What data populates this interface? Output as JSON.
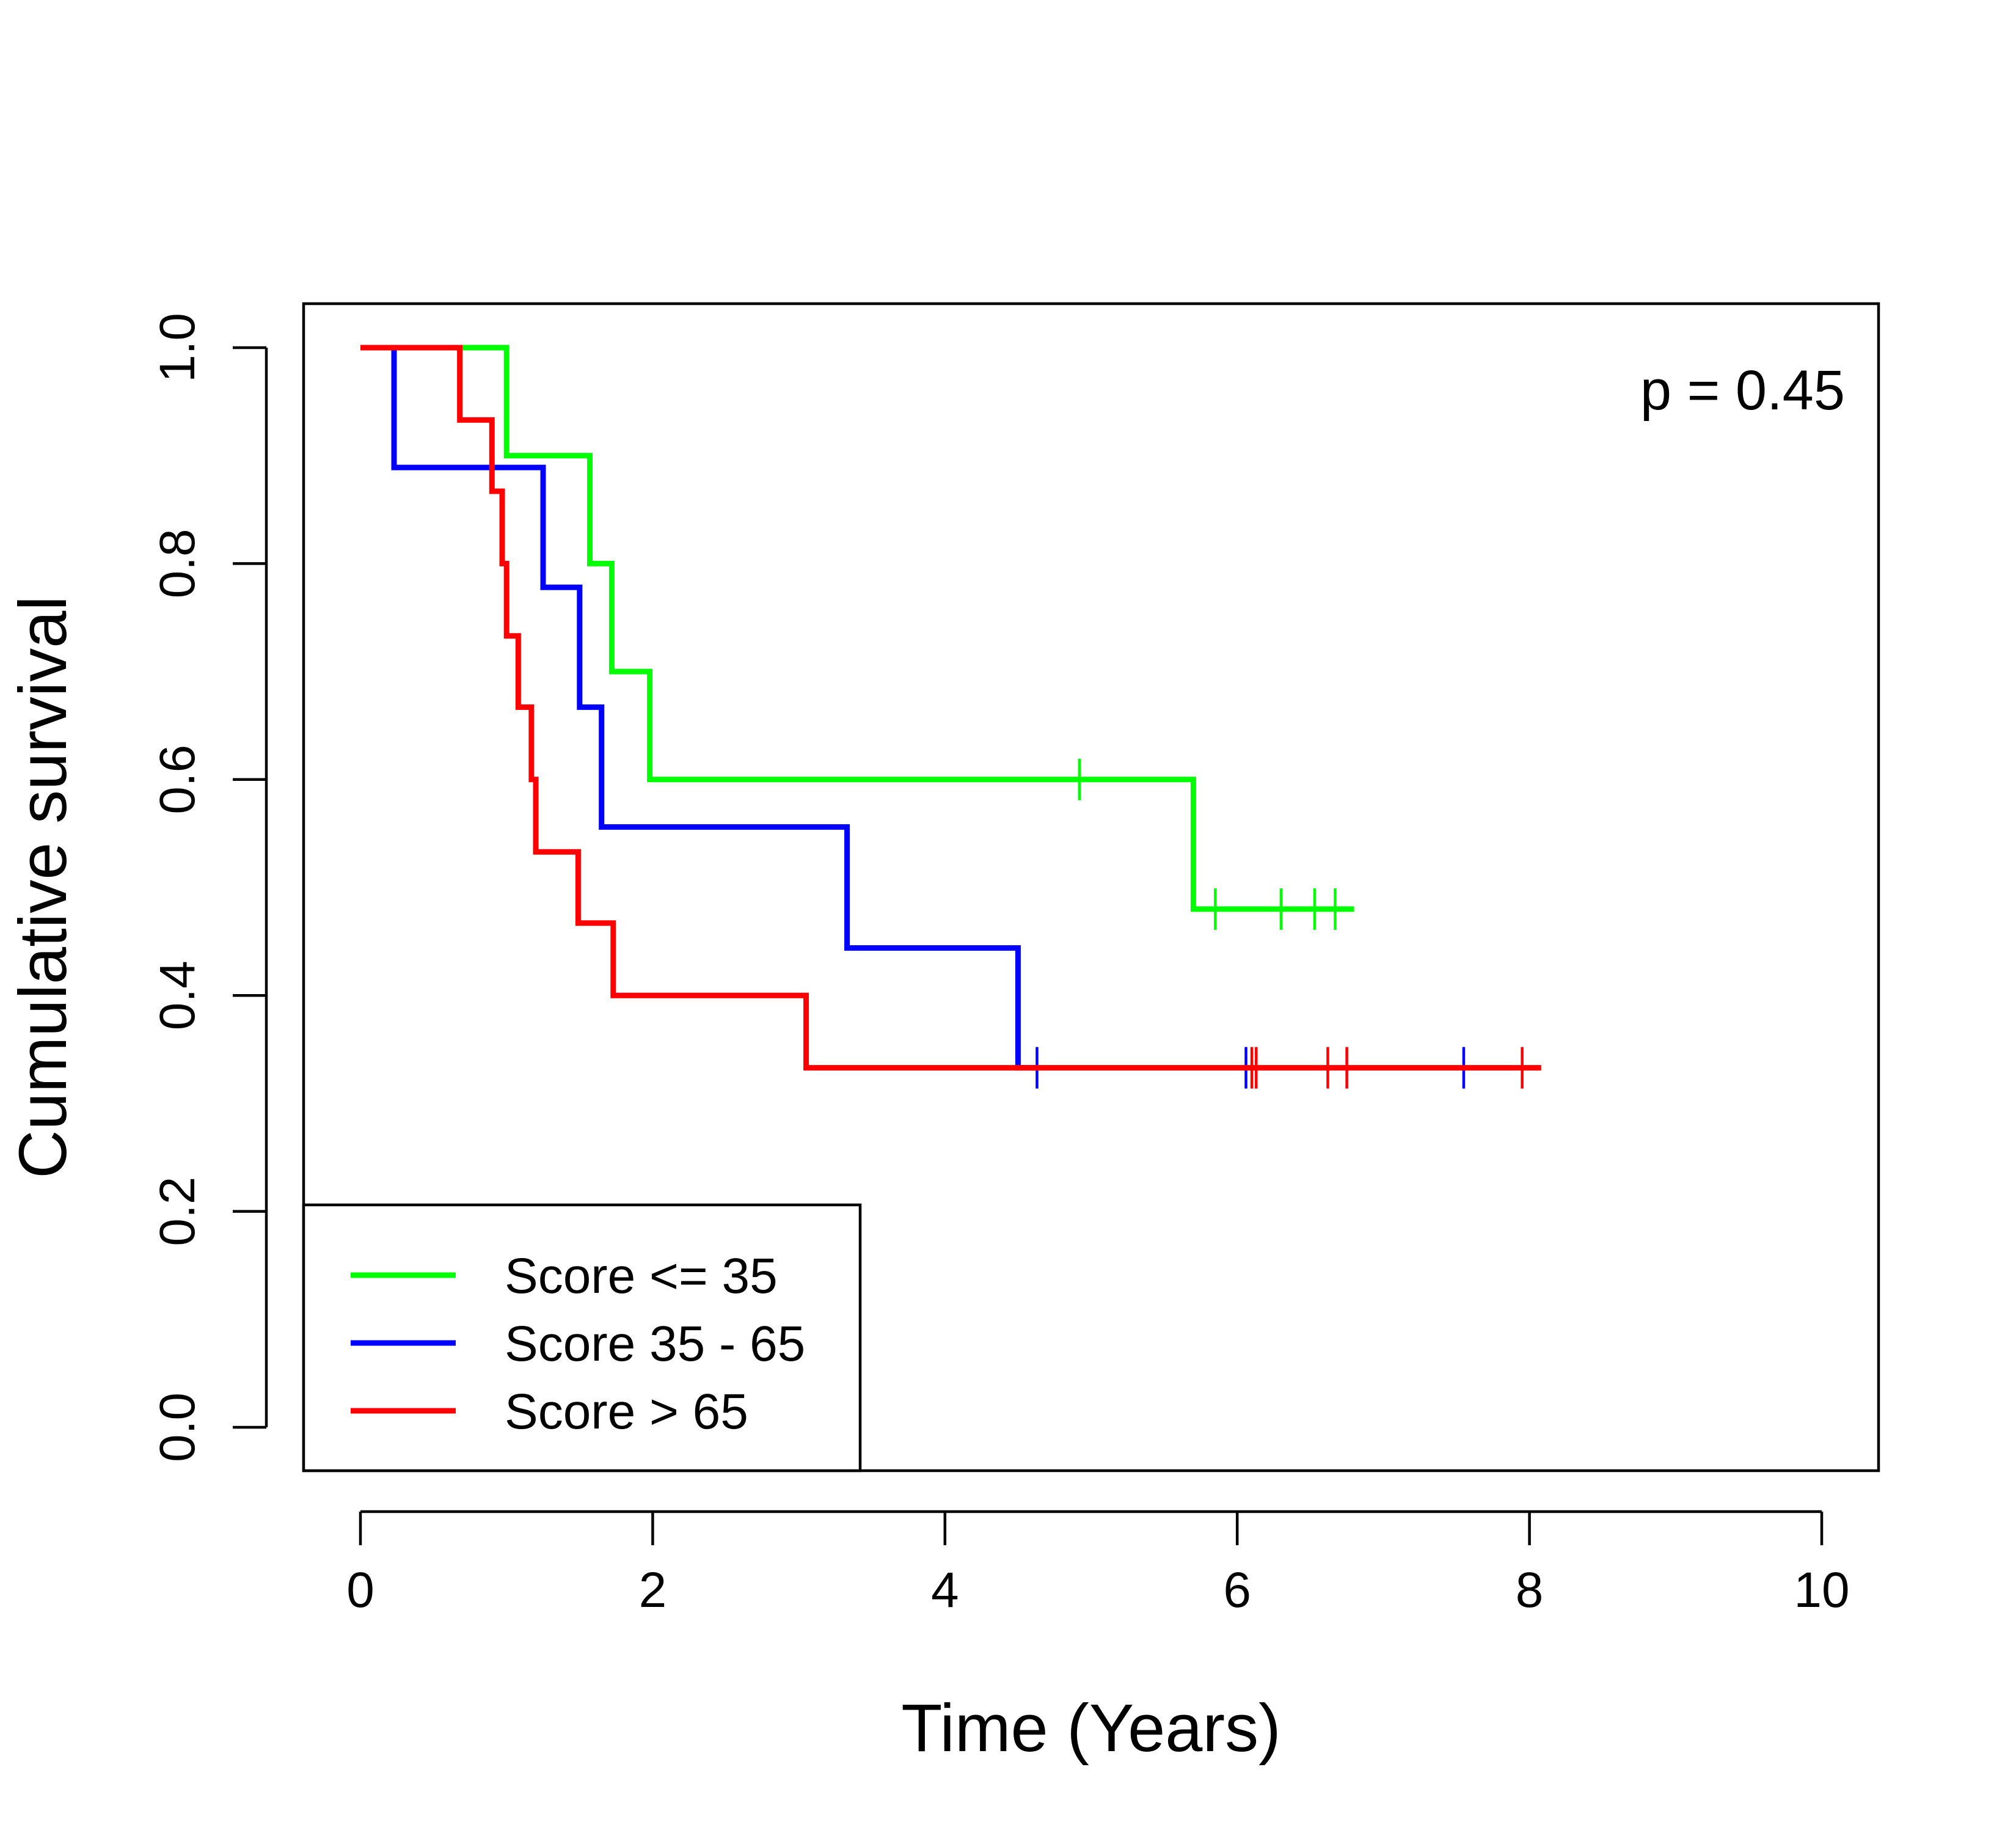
{
  "chart_data": {
    "type": "line",
    "title": "",
    "xlabel": "Time (Years)",
    "ylabel": "Cumulative survival",
    "xlim": [
      0,
      10
    ],
    "ylim": [
      0,
      1
    ],
    "xticks": [
      0,
      2,
      4,
      6,
      8,
      10
    ],
    "yticks": [
      0.0,
      0.2,
      0.4,
      0.6,
      0.8,
      1.0
    ],
    "ytick_labels": [
      "0.0",
      "0.2",
      "0.4",
      "0.6",
      "0.8",
      "1.0"
    ],
    "grid": false,
    "step": true,
    "annotation": "p = 0.45",
    "legend": {
      "placement": "bottom-left"
    },
    "series": [
      {
        "name": "Score <= 35",
        "color": "#00ff00",
        "end_x": 6.8,
        "steps": [
          [
            0,
            1.0
          ],
          [
            1.0,
            0.9
          ],
          [
            1.57,
            0.8
          ],
          [
            1.72,
            0.7
          ],
          [
            1.98,
            0.6
          ],
          [
            5.7,
            0.48
          ]
        ],
        "censored": [
          [
            4.92,
            0.6
          ],
          [
            5.85,
            0.48
          ],
          [
            6.3,
            0.48
          ],
          [
            6.53,
            0.48
          ],
          [
            6.67,
            0.48
          ]
        ]
      },
      {
        "name": "Score 35 - 65",
        "color": "#0000ff",
        "end_x": 4.63,
        "steps": [
          [
            0,
            1.0
          ],
          [
            0.23,
            0.889
          ],
          [
            1.25,
            0.778
          ],
          [
            1.5,
            0.667
          ],
          [
            1.65,
            0.556
          ],
          [
            3.33,
            0.444
          ],
          [
            4.5,
            0.333
          ]
        ],
        "censored": [
          [
            4.63,
            0.333
          ],
          [
            6.06,
            0.333
          ],
          [
            7.55,
            0.333
          ]
        ]
      },
      {
        "name": "Score > 65",
        "color": "#ff0000",
        "end_x": 8.08,
        "steps": [
          [
            0,
            1.0
          ],
          [
            0.68,
            0.933
          ],
          [
            0.9,
            0.867
          ],
          [
            0.97,
            0.8
          ],
          [
            1.0,
            0.733
          ],
          [
            1.08,
            0.667
          ],
          [
            1.17,
            0.6
          ],
          [
            1.2,
            0.533
          ],
          [
            1.49,
            0.467
          ],
          [
            1.73,
            0.4
          ],
          [
            3.05,
            0.333
          ]
        ],
        "censored": [
          [
            6.1,
            0.333
          ],
          [
            6.13,
            0.333
          ],
          [
            6.62,
            0.333
          ],
          [
            6.75,
            0.333
          ],
          [
            7.95,
            0.333
          ]
        ]
      }
    ]
  }
}
